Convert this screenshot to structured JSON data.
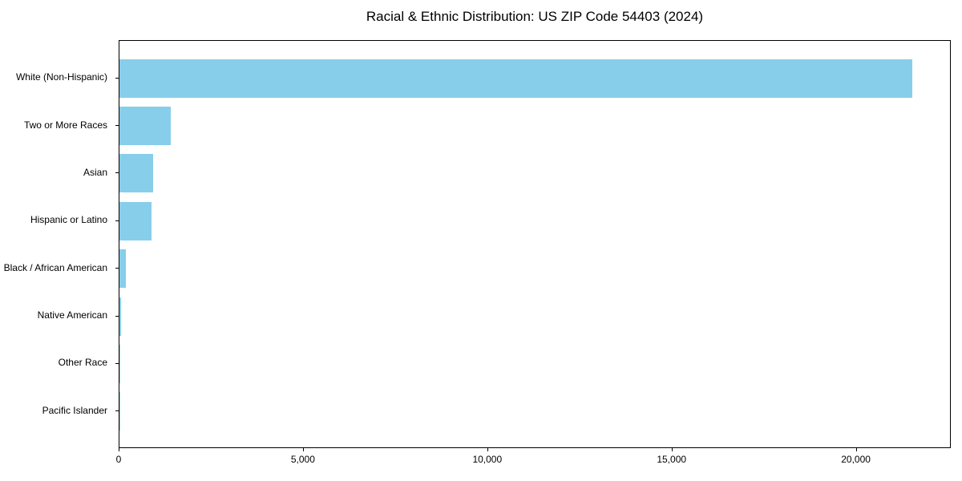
{
  "chart_data": {
    "type": "bar",
    "orientation": "horizontal",
    "title": "Racial & Ethnic Distribution: US ZIP Code 54403 (2024)",
    "categories": [
      "White (Non-Hispanic)",
      "Two or More Races",
      "Asian",
      "Hispanic or Latino",
      "Black / African American",
      "Native American",
      "Other Race",
      "Pacific Islander"
    ],
    "values": [
      21500,
      1400,
      920,
      860,
      170,
      40,
      15,
      5
    ],
    "xlabel": "",
    "ylabel": "",
    "xlim": [
      0,
      22575
    ],
    "xticks": [
      0,
      5000,
      10000,
      15000,
      20000
    ],
    "xtick_labels": [
      "0",
      "5,000",
      "10,000",
      "15,000",
      "20,000"
    ],
    "bar_color": "#87CEEB",
    "grid": false,
    "legend": "none",
    "frame": "full-box"
  }
}
